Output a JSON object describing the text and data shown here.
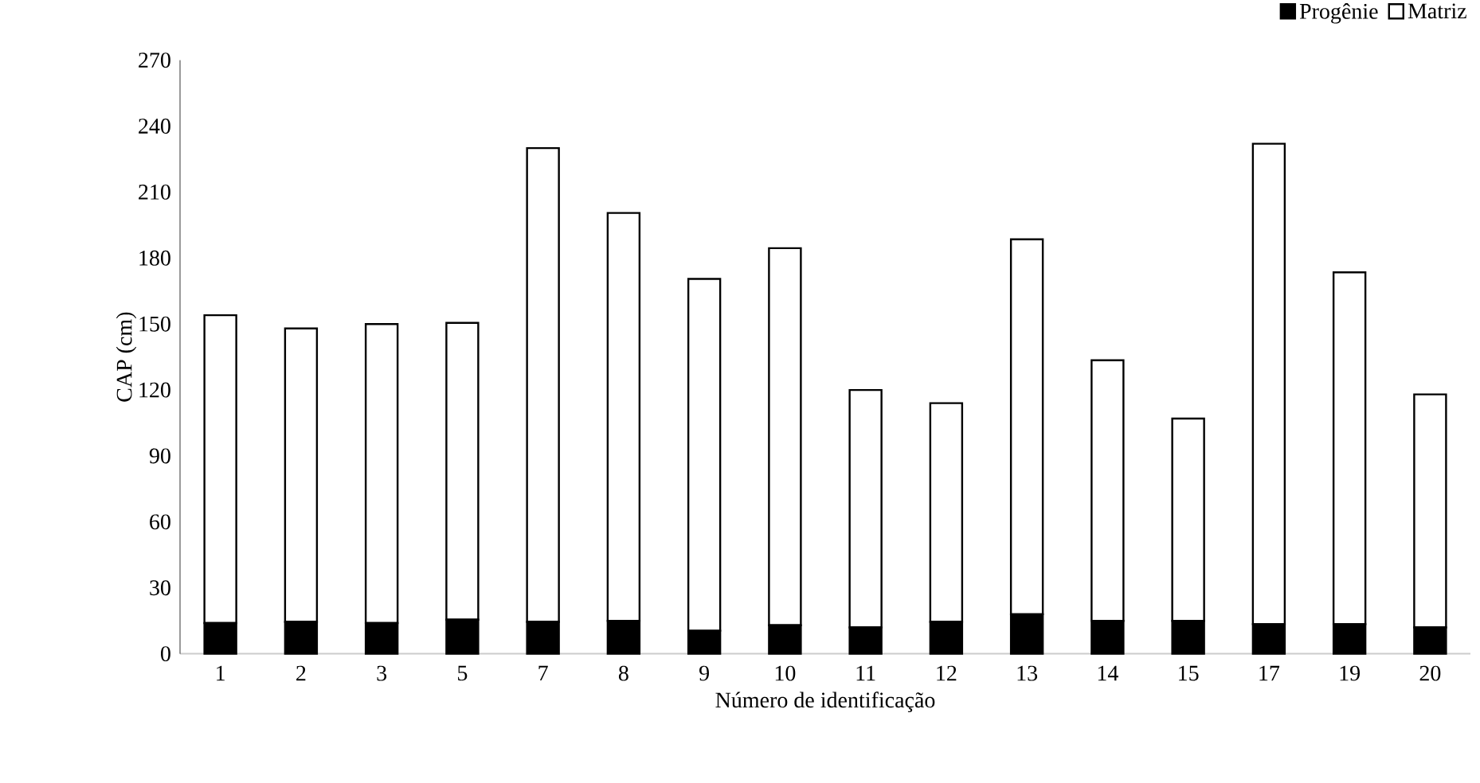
{
  "chart_data": {
    "type": "bar",
    "stacked": true,
    "xlabel": "Número de identificação",
    "ylabel": "CAP (cm)",
    "categories": [
      "1",
      "2",
      "3",
      "5",
      "7",
      "8",
      "9",
      "10",
      "11",
      "12",
      "13",
      "14",
      "15",
      "17",
      "19",
      "20"
    ],
    "series": [
      {
        "name": "Progênie",
        "color": "#000000",
        "values": [
          14,
          14.5,
          14,
          15.5,
          14.5,
          15,
          10.5,
          13,
          12,
          14.5,
          18,
          15,
          15,
          13.5,
          13.5,
          12
        ]
      },
      {
        "name": "Matriz",
        "color": "#ffffff",
        "values": [
          140,
          133.5,
          136,
          135,
          215.5,
          185.5,
          160,
          171.5,
          108,
          99.5,
          170.5,
          118.5,
          92,
          218.5,
          160,
          106
        ]
      }
    ],
    "ylim": [
      0,
      270
    ],
    "yticks": [
      0,
      30,
      60,
      90,
      120,
      150,
      180,
      210,
      240,
      270
    ],
    "legend": "top right",
    "grid": false
  }
}
